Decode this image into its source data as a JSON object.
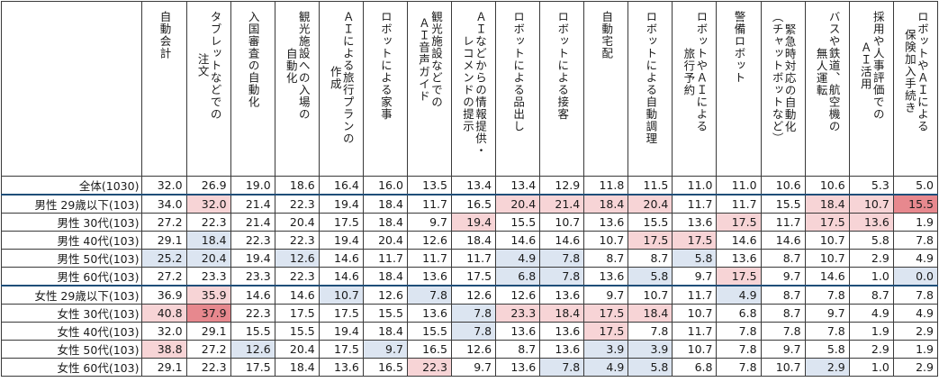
{
  "chart_data": {
    "type": "table",
    "columns": [
      "自動会計",
      "タブレットなどでの\n注文",
      "入国審査の自動化",
      "観光施設への入場の\n自動化",
      "ＡＩによる旅行プランの\n作成",
      "ロボットによる家事",
      "観光施設などでの\nＡＩ音声ガイド",
      "ＡＩなどからの情報提供・\nレコメンドの提示",
      "ロボットによる品出し",
      "ロボットによる接客",
      "自動宅配",
      "ロボットによる自動調理",
      "ロボットやＡＩによる\n旅行予約",
      "警備ロボット",
      "緊急時対応の自動化\n（チャットボットなど）",
      "バスや鉄道、航空機の\n無人運転",
      "採用や人事評価での\nＡＩ活用",
      "ロボットやＡＩによる\n保険加入手続き"
    ],
    "rows": [
      {
        "label": "全体(1030)",
        "values": [
          "32.0",
          "26.9",
          "19.0",
          "18.6",
          "16.4",
          "16.0",
          "13.5",
          "13.4",
          "13.4",
          "12.9",
          "11.8",
          "11.5",
          "11.0",
          "11.0",
          "10.6",
          "10.6",
          "5.3",
          "5.0"
        ]
      },
      {
        "label": "男性 29歳以下(103)",
        "values": [
          "34.0",
          "32.0",
          "21.4",
          "22.3",
          "19.4",
          "18.4",
          "11.7",
          "16.5",
          "20.4",
          "21.4",
          "18.4",
          "20.4",
          "11.7",
          "11.7",
          "15.5",
          "18.4",
          "10.7",
          "15.5"
        ]
      },
      {
        "label": "男性 30代(103)",
        "values": [
          "27.2",
          "22.3",
          "21.4",
          "20.4",
          "17.5",
          "18.4",
          "9.7",
          "19.4",
          "15.5",
          "10.7",
          "13.6",
          "15.5",
          "13.6",
          "17.5",
          "11.7",
          "17.5",
          "13.6",
          "1.9"
        ]
      },
      {
        "label": "男性 40代(103)",
        "values": [
          "29.1",
          "18.4",
          "22.3",
          "22.3",
          "19.4",
          "20.4",
          "12.6",
          "18.4",
          "14.6",
          "14.6",
          "10.7",
          "17.5",
          "17.5",
          "14.6",
          "14.6",
          "10.7",
          "5.8",
          "7.8"
        ]
      },
      {
        "label": "男性 50代(103)",
        "values": [
          "25.2",
          "20.4",
          "19.4",
          "12.6",
          "14.6",
          "11.7",
          "11.7",
          "11.7",
          "4.9",
          "7.8",
          "8.7",
          "8.7",
          "5.8",
          "13.6",
          "8.7",
          "10.7",
          "2.9",
          "4.9"
        ]
      },
      {
        "label": "男性 60代(103)",
        "values": [
          "27.2",
          "23.3",
          "23.3",
          "22.3",
          "14.6",
          "18.4",
          "13.6",
          "17.5",
          "6.8",
          "7.8",
          "13.6",
          "5.8",
          "9.7",
          "17.5",
          "9.7",
          "14.6",
          "1.0",
          "0.0"
        ]
      },
      {
        "label": "女性 29歳以下(103)",
        "values": [
          "36.9",
          "35.9",
          "14.6",
          "14.6",
          "10.7",
          "12.6",
          "7.8",
          "12.6",
          "12.6",
          "13.6",
          "9.7",
          "10.7",
          "11.7",
          "4.9",
          "8.7",
          "7.8",
          "8.7",
          "7.8"
        ]
      },
      {
        "label": "女性 30代(103)",
        "values": [
          "40.8",
          "37.9",
          "22.3",
          "17.5",
          "17.5",
          "15.5",
          "13.6",
          "7.8",
          "23.3",
          "18.4",
          "17.5",
          "18.4",
          "10.7",
          "6.8",
          "8.7",
          "9.7",
          "4.9",
          "4.9"
        ]
      },
      {
        "label": "女性 40代(103)",
        "values": [
          "32.0",
          "29.1",
          "15.5",
          "15.5",
          "19.4",
          "18.4",
          "15.5",
          "7.8",
          "13.6",
          "13.6",
          "17.5",
          "7.8",
          "11.7",
          "7.8",
          "7.8",
          "7.8",
          "1.9",
          "2.9"
        ]
      },
      {
        "label": "女性 50代(103)",
        "values": [
          "38.8",
          "27.2",
          "12.6",
          "20.4",
          "17.5",
          "9.7",
          "16.5",
          "12.6",
          "8.7",
          "13.6",
          "3.9",
          "3.9",
          "10.7",
          "7.8",
          "9.7",
          "5.8",
          "2.9",
          "1.9"
        ]
      },
      {
        "label": "女性 60代(103)",
        "values": [
          "29.1",
          "22.3",
          "17.5",
          "18.4",
          "13.6",
          "16.5",
          "22.3",
          "9.7",
          "13.6",
          "7.8",
          "4.9",
          "5.8",
          "6.8",
          "7.8",
          "10.7",
          "2.9",
          "1.0",
          "2.9"
        ]
      }
    ]
  },
  "colors": {
    "high_strong": "#e7888e",
    "high": "#f7d4d6",
    "low": "#dce5f1",
    "none": "#ffffff",
    "total_border": "#1f4e79"
  }
}
